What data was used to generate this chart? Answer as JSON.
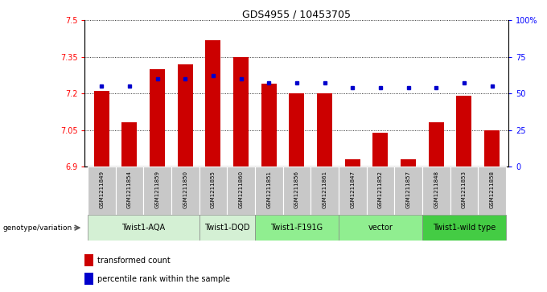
{
  "title": "GDS4955 / 10453705",
  "samples": [
    "GSM1211849",
    "GSM1211854",
    "GSM1211859",
    "GSM1211850",
    "GSM1211855",
    "GSM1211860",
    "GSM1211851",
    "GSM1211856",
    "GSM1211861",
    "GSM1211847",
    "GSM1211852",
    "GSM1211857",
    "GSM1211848",
    "GSM1211853",
    "GSM1211858"
  ],
  "bar_values": [
    7.21,
    7.08,
    7.3,
    7.32,
    7.42,
    7.35,
    7.24,
    7.2,
    7.2,
    6.93,
    7.04,
    6.93,
    7.08,
    7.19,
    7.05
  ],
  "percentile_values": [
    55,
    55,
    60,
    60,
    62,
    60,
    57,
    57,
    57,
    54,
    54,
    54,
    54,
    57,
    55
  ],
  "groups": [
    {
      "label": "Twist1-AQA",
      "indices": [
        0,
        1,
        2,
        3
      ],
      "color": "#d4f0d4"
    },
    {
      "label": "Twist1-DQD",
      "indices": [
        4,
        5
      ],
      "color": "#d4f0d4"
    },
    {
      "label": "Twist1-F191G",
      "indices": [
        6,
        7,
        8
      ],
      "color": "#90ee90"
    },
    {
      "label": "vector",
      "indices": [
        9,
        10,
        11
      ],
      "color": "#90ee90"
    },
    {
      "label": "Twist1-wild type",
      "indices": [
        12,
        13,
        14
      ],
      "color": "#44cc44"
    }
  ],
  "ylim_left": [
    6.9,
    7.5
  ],
  "ylim_right": [
    0,
    100
  ],
  "yticks_left": [
    6.9,
    7.05,
    7.2,
    7.35,
    7.5
  ],
  "ytick_labels_left": [
    "6.9",
    "7.05",
    "7.2",
    "7.35",
    "7.5"
  ],
  "yticks_right": [
    0,
    25,
    50,
    75,
    100
  ],
  "ytick_labels_right": [
    "0",
    "25",
    "50",
    "75",
    "100%"
  ],
  "bar_color": "#cc0000",
  "dot_color": "#0000cc",
  "bar_width": 0.55,
  "genotype_label": "genotype/variation",
  "legend_bar": "transformed count",
  "legend_dot": "percentile rank within the sample",
  "sample_box_color": "#c8c8c8",
  "fig_width": 6.8,
  "fig_height": 3.63,
  "dpi": 100
}
